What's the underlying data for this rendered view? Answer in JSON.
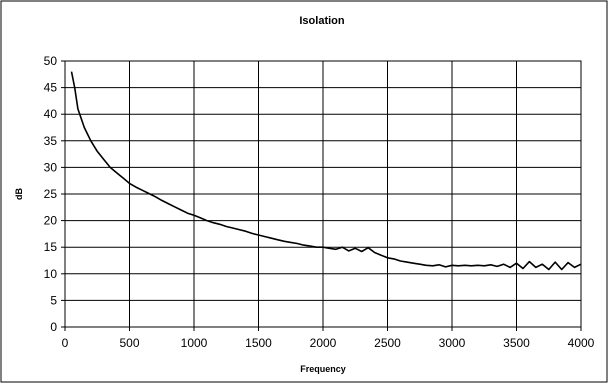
{
  "chart_data": {
    "type": "line",
    "title": "Isolation",
    "xlabel": "Frequency",
    "ylabel": "dB",
    "xlim": [
      0,
      4000
    ],
    "ylim": [
      0,
      50
    ],
    "x_ticks": [
      0,
      500,
      1000,
      1500,
      2000,
      2500,
      3000,
      3500,
      4000
    ],
    "y_ticks": [
      0,
      5,
      10,
      15,
      20,
      25,
      30,
      35,
      40,
      45,
      50
    ],
    "grid": true,
    "legend": "none",
    "series": [
      {
        "color": "#000000",
        "x": [
          50,
          75,
          100,
          150,
          200,
          250,
          300,
          350,
          400,
          450,
          500,
          550,
          600,
          650,
          700,
          750,
          800,
          850,
          900,
          950,
          1000,
          1050,
          1100,
          1150,
          1200,
          1250,
          1300,
          1350,
          1400,
          1450,
          1500,
          1550,
          1600,
          1650,
          1700,
          1750,
          1800,
          1850,
          1900,
          1950,
          2000,
          2050,
          2100,
          2150,
          2200,
          2250,
          2300,
          2350,
          2400,
          2450,
          2500,
          2550,
          2600,
          2650,
          2700,
          2750,
          2800,
          2850,
          2900,
          2950,
          3000,
          3050,
          3100,
          3150,
          3200,
          3250,
          3300,
          3350,
          3400,
          3450,
          3500,
          3550,
          3600,
          3650,
          3700,
          3750,
          3800,
          3850,
          3900,
          3950,
          4000
        ],
        "y": [
          48,
          45,
          41,
          37.5,
          35,
          33,
          31.5,
          30,
          29,
          28,
          27,
          26.3,
          25.7,
          25.1,
          24.5,
          23.8,
          23.2,
          22.6,
          22,
          21.4,
          21,
          20.5,
          20,
          19.6,
          19.3,
          18.9,
          18.6,
          18.3,
          18,
          17.6,
          17.3,
          17,
          16.7,
          16.4,
          16.1,
          15.9,
          15.7,
          15.4,
          15.2,
          15,
          15,
          14.8,
          14.6,
          15,
          14.3,
          14.8,
          14.2,
          14.9,
          14,
          13.5,
          13,
          12.8,
          12.4,
          12.2,
          12,
          11.8,
          11.6,
          11.5,
          11.7,
          11.3,
          11.6,
          11.5,
          11.6,
          11.5,
          11.6,
          11.5,
          11.7,
          11.4,
          11.8,
          11.2,
          12,
          11,
          12.3,
          11.2,
          11.8,
          10.8,
          12.2,
          10.8,
          12.1,
          11.2,
          11.8
        ]
      }
    ]
  }
}
